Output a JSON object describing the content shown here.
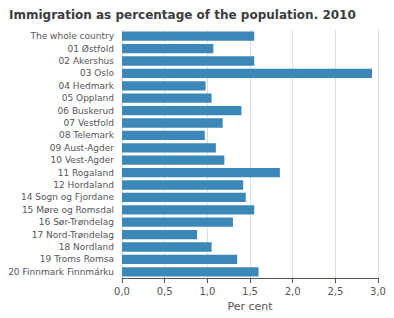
{
  "chart_data": {
    "type": "bar",
    "orientation": "horizontal",
    "title": "Immigration as percentage of the population. 2010",
    "xlabel": "Per cent",
    "categories": [
      "The whole country",
      "01 Østfold",
      "02 Akershus",
      "03 Oslo",
      "04 Hedmark",
      "05 Oppland",
      "06 Buskerud",
      "07 Vestfold",
      "08 Telemark",
      "09 Aust-Agder",
      "10 Vest-Agder",
      "11 Rogaland",
      "12 Hordaland",
      "14 Sogn og Fjordane",
      "15 Møre og Romsdal",
      "16 Sør-Trøndelag",
      "17 Nord-Trøndelag",
      "18 Nordland",
      "19 Troms Romsa",
      "20 Finnmark Finnmárku"
    ],
    "values": [
      1.55,
      1.07,
      1.55,
      2.93,
      0.98,
      1.05,
      1.4,
      1.18,
      0.97,
      1.1,
      1.2,
      1.85,
      1.42,
      1.45,
      1.55,
      1.3,
      0.88,
      1.05,
      1.35,
      1.6
    ],
    "color": "#3a87b8",
    "xlim": [
      0,
      3.0
    ],
    "xticks": [
      {
        "value": 0.0,
        "label": "0,0"
      },
      {
        "value": 0.5,
        "label": "0,5"
      },
      {
        "value": 1.0,
        "label": "1,0"
      },
      {
        "value": 1.5,
        "label": "1,5"
      },
      {
        "value": 2.0,
        "label": "2,0"
      },
      {
        "value": 2.5,
        "label": "2,5"
      },
      {
        "value": 3.0,
        "label": "3,0"
      }
    ],
    "grid": true
  }
}
